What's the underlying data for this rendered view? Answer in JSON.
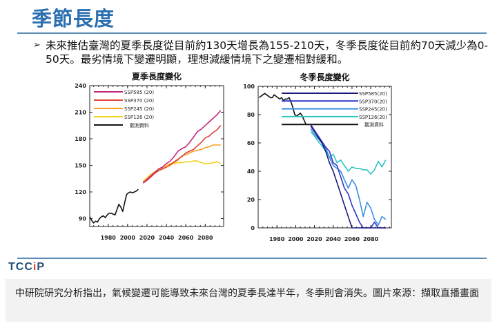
{
  "header": {
    "title": "季節長度"
  },
  "bullet": {
    "text": "未來推估臺灣的夏季長度從目前約130天增長為155-210天，冬季長度從目前約70天減少為0-50天。最劣情境下變遷明顯，理想減緩情境下之變遷相對緩和。"
  },
  "footer": {
    "logo_text": "TCCiP",
    "caption": "中研院研究分析指出，氣候變遷可能導致未來台灣的夏季長達半年，冬季則會消失。圖片來源：擷取直播畫面"
  },
  "chart_data": [
    {
      "type": "line",
      "title": "夏季長度變化",
      "xlabel": "",
      "ylabel": "",
      "xlim": [
        1961,
        2099
      ],
      "ylim": [
        81,
        240
      ],
      "xticks": [
        1980,
        2000,
        2020,
        2040,
        2060,
        2080
      ],
      "yticks": [
        90,
        120,
        150,
        180,
        210,
        240
      ],
      "legend": "top-left",
      "series": [
        {
          "name": "SSP585 (20)",
          "color": "#c0287f",
          "x_start": 2016,
          "x_step": 4,
          "values": [
            130,
            134,
            138,
            142,
            146,
            148,
            152,
            155,
            160,
            166,
            169,
            171,
            176,
            182,
            188,
            191,
            195,
            199,
            203,
            207,
            212
          ]
        },
        {
          "name": "SSP370 (20)",
          "color": "#e0433a",
          "x_start": 2016,
          "x_step": 4,
          "values": [
            130,
            133,
            137,
            141,
            144,
            146,
            148,
            151,
            154,
            157,
            160,
            164,
            166,
            168,
            172,
            176,
            181,
            183,
            187,
            190,
            195
          ]
        },
        {
          "name": "SSP245 (20)",
          "color": "#f5a020",
          "x_start": 2016,
          "x_step": 4,
          "values": [
            131,
            135,
            139,
            142,
            144,
            146,
            148,
            150,
            153,
            156,
            161,
            162,
            164,
            166,
            167,
            168,
            170,
            171,
            173,
            173,
            173
          ]
        },
        {
          "name": "SSP126 (20)",
          "color": "#f2d21c",
          "x_start": 2016,
          "x_step": 4,
          "values": [
            132,
            136,
            140,
            143,
            145,
            147,
            150,
            152,
            152,
            153,
            153,
            154,
            154,
            155,
            155,
            153,
            152,
            152,
            153,
            154,
            152
          ]
        },
        {
          "name": "觀測資料",
          "color": "#111111",
          "x_start": 1961,
          "x_step": 2,
          "values": [
            92,
            88,
            85,
            87,
            86,
            90,
            92,
            93,
            91,
            94,
            96,
            96,
            95,
            94,
            100,
            106,
            103,
            98,
            108,
            117,
            119,
            120,
            119,
            120,
            121,
            123
          ]
        }
      ]
    },
    {
      "type": "line",
      "title": "冬季長度變化",
      "xlabel": "",
      "ylabel": "",
      "xlim": [
        1960,
        2102
      ],
      "ylim": [
        0,
        100
      ],
      "xticks": [
        1980,
        2000,
        2020,
        2040,
        2060,
        2080
      ],
      "yticks": [
        0,
        20,
        40,
        60,
        80,
        100
      ],
      "legend": "top-right",
      "series": [
        {
          "name": "SSP585(20)",
          "color": "#1a1a7a",
          "x_start": 2016,
          "x_step": 4,
          "values": [
            72,
            68,
            64,
            60,
            54,
            46,
            40,
            32,
            24,
            16,
            8,
            0,
            0,
            0,
            0,
            0,
            0,
            0,
            0,
            0,
            0
          ]
        },
        {
          "name": "SSP370(20)",
          "color": "#2e35c8",
          "x_start": 2016,
          "x_step": 4,
          "values": [
            73,
            69,
            65,
            61,
            57,
            54,
            46,
            44,
            36,
            28,
            24,
            16,
            10,
            4,
            0,
            0,
            0,
            4,
            0,
            0,
            0
          ]
        },
        {
          "name": "SSP245(20)",
          "color": "#3a8fe0",
          "x_start": 2016,
          "x_step": 4,
          "values": [
            70,
            66,
            63,
            60,
            56,
            50,
            44,
            42,
            40,
            34,
            28,
            34,
            30,
            20,
            8,
            18,
            14,
            6,
            2,
            8,
            6
          ]
        },
        {
          "name": "SSP126(20)",
          "color": "#2ec4c0",
          "x_start": 2016,
          "x_step": 4,
          "values": [
            68,
            65,
            61,
            58,
            54,
            50,
            52,
            46,
            48,
            44,
            40,
            43,
            42,
            42,
            41,
            41,
            38,
            41,
            47,
            43,
            48
          ]
        },
        {
          "name": "觀測資料",
          "color": "#111111",
          "x_start": 1961,
          "x_step": 2,
          "values": [
            92,
            93,
            94,
            95,
            94,
            93,
            92,
            92,
            94,
            93,
            92,
            91,
            92,
            90,
            91,
            91,
            92,
            89,
            85,
            80,
            79,
            80,
            81,
            79,
            76,
            73
          ]
        }
      ]
    }
  ]
}
